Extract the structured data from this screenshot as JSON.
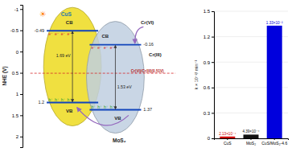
{
  "chart_data": [
    {
      "type": "band",
      "categories": [
        "CuS",
        "MoS₂"
      ],
      "series": [
        {
          "name": "CB",
          "color": "#1144bb",
          "values": [
            -0.49,
            -0.16
          ]
        },
        {
          "name": "VB",
          "color": "#1144bb",
          "values": [
            1.2,
            1.37
          ]
        }
      ],
      "colors": [
        "#f0e040",
        "#c0cfe0"
      ],
      "ylabel": "NHE (V)",
      "ylim": [
        2.25,
        -1.1
      ],
      "yticks": [
        -1,
        -0.5,
        0,
        0.5,
        1,
        1.5,
        2
      ],
      "data_labels": true,
      "tick_labels": "y",
      "redox_potential": 0.51,
      "annotations": [
        "1.69 eV",
        "1.53 eV",
        "Cr(VI)/Cr(III)(0.51V)",
        "☀",
        "Cr(VI)",
        "Cr(III)",
        "e⁻",
        "h⁺"
      ]
    },
    {
      "type": "bar",
      "categories": [
        "CuS",
        "MoS₂",
        "CuS/MoS₂-4.6"
      ],
      "values": [
        0.0213,
        0.0439,
        1.33
      ],
      "value_labels": [
        "2.13×10⁻⁴",
        "4.39×10⁻⁴",
        "1.33×10⁻²"
      ],
      "colors": [
        "#cc0000",
        "#111111",
        "#0000dd"
      ],
      "ylabel": "k × 10⁻²/ min⁻¹",
      "ylim": [
        0,
        1.5
      ],
      "yticks": [
        0,
        0.3,
        0.6,
        0.9,
        1.2,
        1.5
      ],
      "grid": true,
      "data_labels": true
    }
  ]
}
